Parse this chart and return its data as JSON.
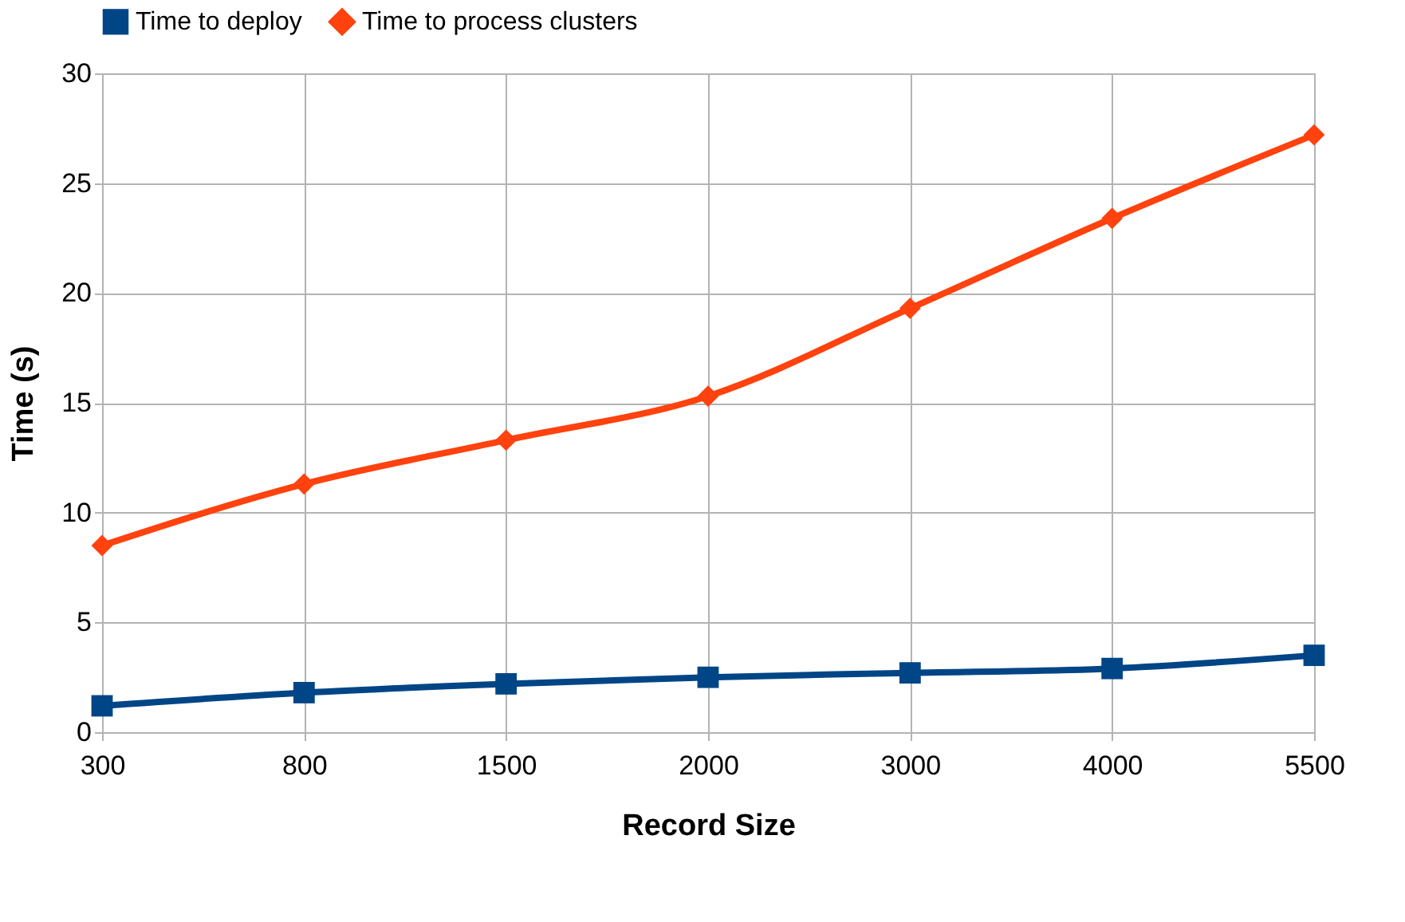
{
  "chart_data": {
    "type": "line",
    "xlabel": "Record Size",
    "ylabel": "Time (s)",
    "categories": [
      "300",
      "800",
      "1500",
      "2000",
      "3000",
      "4000",
      "5500"
    ],
    "series": [
      {
        "name": "Time to deploy",
        "color": "#004586",
        "marker": "square",
        "values": [
          1.2,
          1.8,
          2.2,
          2.5,
          2.7,
          2.9,
          3.5
        ]
      },
      {
        "name": "Time to process clusters",
        "color": "#ff420e",
        "marker": "diamond",
        "values": [
          8.5,
          11.3,
          13.3,
          15.3,
          19.3,
          23.4,
          27.2
        ]
      }
    ],
    "ylim": [
      0,
      30
    ],
    "yticks": [
      0,
      5,
      10,
      15,
      20,
      25,
      30
    ],
    "grid": true,
    "legend": "top"
  }
}
